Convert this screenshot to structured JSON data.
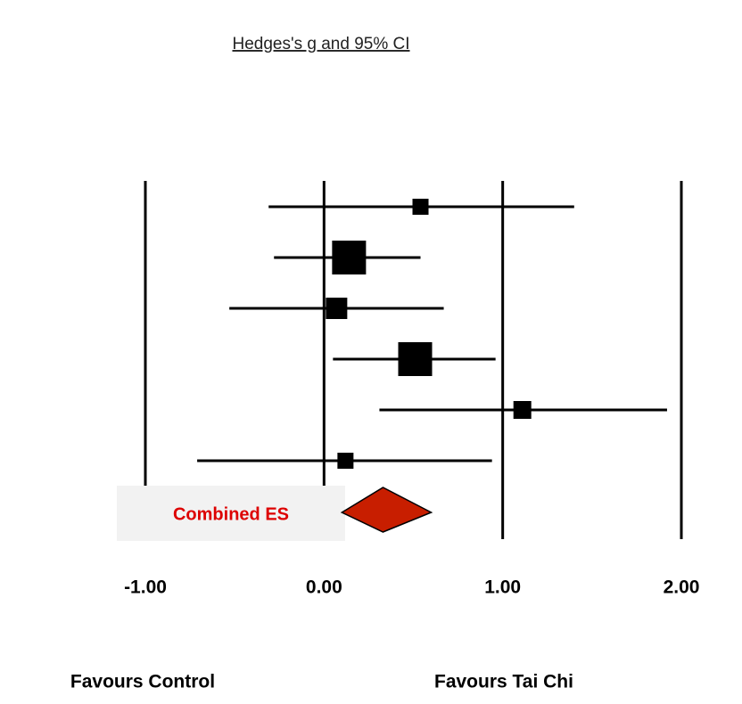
{
  "chart_data": {
    "type": "forest",
    "title": "Hedges's g and 95% CI",
    "xlim": [
      -1,
      2
    ],
    "xticks": [
      {
        "value": -1,
        "label": "-1.00"
      },
      {
        "value": 0,
        "label": "0.00"
      },
      {
        "value": 1,
        "label": "1.00"
      },
      {
        "value": 2,
        "label": "2.00"
      }
    ],
    "grid": true,
    "color": "#000000",
    "values": [
      0.54,
      0.14,
      0.07,
      0.51,
      1.11,
      0.12
    ],
    "lower": [
      -0.31,
      -0.28,
      -0.53,
      0.05,
      0.31,
      -0.71
    ],
    "upper": [
      1.4,
      0.54,
      0.67,
      0.96,
      1.92,
      0.94
    ],
    "weights": [
      18,
      38,
      24,
      38,
      20,
      18
    ],
    "combined": {
      "label": "Combined ES",
      "value": 0.33,
      "lower": 0.1,
      "upper": 0.6,
      "color": "#c81e00"
    },
    "left_label": "Favours Control",
    "right_label": "Favours Tai Chi"
  }
}
